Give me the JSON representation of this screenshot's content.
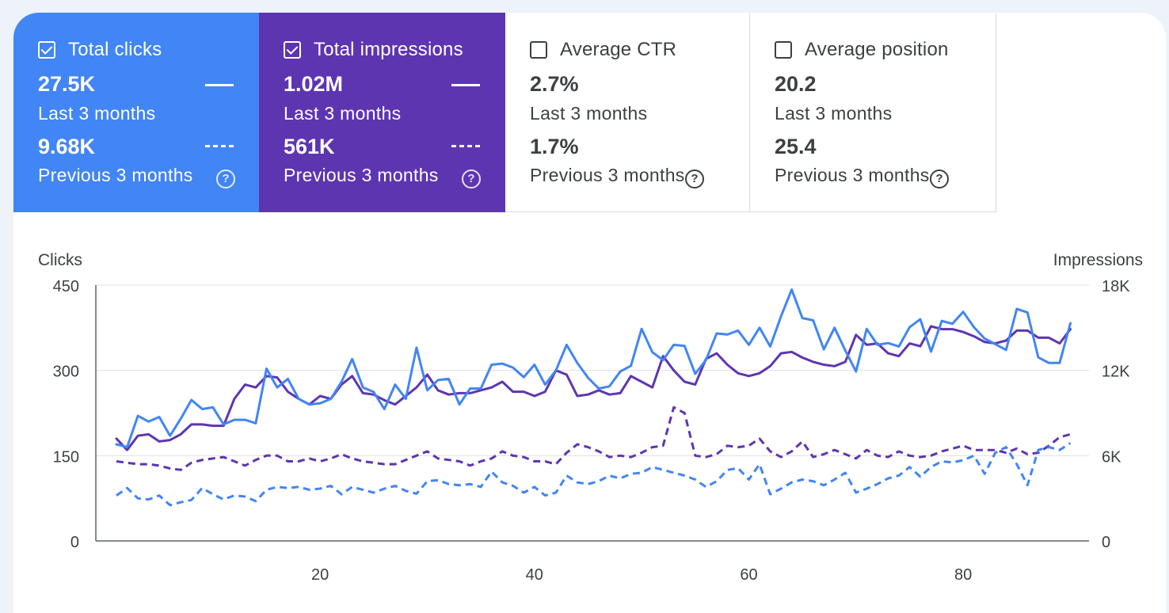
{
  "cards": [
    {
      "title": "Total clicks",
      "checked": true,
      "value": "27.5K",
      "period": "Last 3 months",
      "prev_value": "9.68K",
      "prev_period": "Previous 3 months",
      "help": "?"
    },
    {
      "title": "Total impressions",
      "checked": true,
      "value": "1.02M",
      "period": "Last 3 months",
      "prev_value": "561K",
      "prev_period": "Previous 3 months",
      "help": "?"
    },
    {
      "title": "Average CTR",
      "checked": false,
      "value": "2.7%",
      "period": "Last 3 months",
      "prev_value": "1.7%",
      "prev_period": "Previous 3 months",
      "help": "?"
    },
    {
      "title": "Average position",
      "checked": false,
      "value": "20.2",
      "period": "Last 3 months",
      "prev_value": "25.4",
      "prev_period": "Previous 3 months",
      "help": "?"
    }
  ],
  "colors": {
    "clicks": "#4285f4",
    "impressions": "#5e35b1",
    "grid": "#e0e0e0"
  },
  "chart_data": {
    "type": "line",
    "left_axis_label": "Clicks",
    "right_axis_label": "Impressions",
    "left_ticks": [
      "0",
      "150",
      "300",
      "450"
    ],
    "right_ticks": [
      "0",
      "6K",
      "12K",
      "18K"
    ],
    "left_range": [
      0,
      450
    ],
    "right_range": [
      0,
      18000
    ],
    "x_ticks": [
      "20",
      "40",
      "60",
      "80"
    ],
    "x_range": [
      1,
      91
    ],
    "series": [
      {
        "name": "Clicks - Last 3 months",
        "axis": "left",
        "style": "solid",
        "color": "#4285f4",
        "values": [
          170,
          165,
          220,
          210,
          218,
          185,
          215,
          248,
          232,
          235,
          205,
          213,
          213,
          207,
          303,
          270,
          285,
          250,
          240,
          242,
          250,
          280,
          320,
          270,
          262,
          232,
          275,
          250,
          340,
          265,
          283,
          285,
          240,
          268,
          268,
          310,
          312,
          305,
          288,
          310,
          275,
          300,
          345,
          313,
          287,
          268,
          272,
          298,
          308,
          373,
          332,
          318,
          345,
          343,
          294,
          318,
          365,
          363,
          370,
          345,
          375,
          342,
          395,
          442,
          392,
          388,
          337,
          375,
          335,
          298,
          373,
          345,
          348,
          342,
          376,
          390,
          333,
          387,
          382,
          403,
          376,
          356,
          346,
          336,
          408,
          402,
          323,
          313,
          313,
          383
        ]
      },
      {
        "name": "Impressions - Last 3 months",
        "axis": "right",
        "style": "solid",
        "color": "#5e35b1",
        "values": [
          7200,
          6400,
          7400,
          7500,
          7000,
          7100,
          7500,
          8200,
          8200,
          8100,
          8100,
          10000,
          11000,
          10800,
          11600,
          11500,
          10500,
          10000,
          9600,
          10200,
          10000,
          11000,
          11600,
          10400,
          10300,
          9900,
          9600,
          10200,
          10800,
          11700,
          10600,
          10300,
          10400,
          10400,
          10600,
          10800,
          11200,
          10500,
          10500,
          10200,
          10500,
          12000,
          11700,
          10200,
          10300,
          10600,
          10300,
          10400,
          11600,
          11200,
          10800,
          13000,
          12000,
          11200,
          11000,
          12800,
          13200,
          12400,
          11800,
          11600,
          11800,
          12300,
          13200,
          13300,
          12900,
          12600,
          12400,
          12300,
          12600,
          14500,
          13800,
          13900,
          13200,
          13000,
          13900,
          13700,
          15100,
          14900,
          14900,
          14700,
          14400,
          14000,
          13900,
          14100,
          14800,
          14800,
          14300,
          14300,
          13900,
          14900
        ]
      },
      {
        "name": "Clicks - Previous 3 months",
        "axis": "left",
        "style": "dashed",
        "color": "#4285f4",
        "values": [
          80,
          93,
          75,
          73,
          80,
          63,
          68,
          72,
          93,
          82,
          73,
          80,
          78,
          70,
          90,
          95,
          93,
          95,
          90,
          92,
          97,
          82,
          95,
          90,
          85,
          92,
          97,
          88,
          83,
          105,
          107,
          100,
          98,
          100,
          95,
          122,
          103,
          97,
          85,
          95,
          80,
          85,
          115,
          103,
          100,
          105,
          115,
          110,
          118,
          120,
          130,
          125,
          120,
          115,
          108,
          95,
          105,
          125,
          128,
          108,
          135,
          82,
          92,
          103,
          108,
          105,
          98,
          108,
          120,
          85,
          92,
          100,
          110,
          115,
          130,
          113,
          130,
          140,
          138,
          142,
          150,
          118,
          155,
          165,
          135,
          98,
          160,
          165,
          160,
          172
        ]
      },
      {
        "name": "Impressions - Previous 3 months",
        "axis": "right",
        "style": "dashed",
        "color": "#5e35b1",
        "values": [
          5600,
          5500,
          5400,
          5400,
          5300,
          5100,
          5000,
          5500,
          5700,
          5800,
          5900,
          5600,
          5300,
          5700,
          6000,
          6000,
          5600,
          5600,
          5800,
          5600,
          5800,
          6100,
          5800,
          5600,
          5500,
          5400,
          5400,
          5700,
          6000,
          6300,
          5800,
          5700,
          5600,
          5300,
          5600,
          5800,
          6300,
          6000,
          5900,
          5600,
          5600,
          5400,
          6200,
          6800,
          6600,
          6300,
          5900,
          6000,
          5900,
          6200,
          6600,
          6700,
          9400,
          9000,
          6000,
          5900,
          6100,
          6700,
          6600,
          6700,
          7200,
          6300,
          5900,
          6300,
          7000,
          5900,
          6100,
          6400,
          6100,
          5800,
          6400,
          6000,
          5900,
          6300,
          6000,
          5900,
          6000,
          6300,
          6500,
          6700,
          6400,
          6400,
          6400,
          6200,
          6500,
          6100,
          6200,
          6700,
          7300,
          7500
        ]
      }
    ]
  }
}
